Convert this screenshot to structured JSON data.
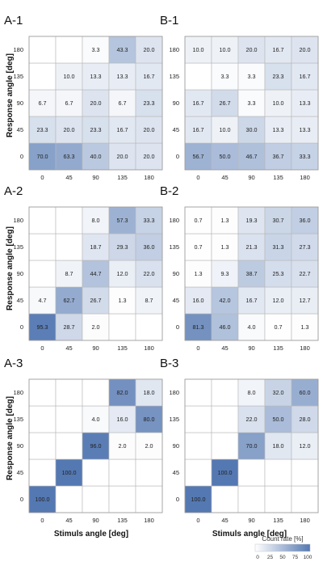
{
  "chart_data": [
    {
      "type": "heatmap",
      "title": "A-1",
      "x": [
        0,
        45,
        90,
        135,
        180
      ],
      "y": [
        0,
        45,
        90,
        135,
        180
      ],
      "xticks": [
        "0",
        "45",
        "90",
        "135",
        "180"
      ],
      "yticks": [
        "0",
        "45",
        "90",
        "135",
        "180"
      ],
      "values": [
        [
          70.0,
          63.3,
          40.0,
          20.0,
          20.0
        ],
        [
          23.3,
          20.0,
          23.3,
          16.7,
          20.0
        ],
        [
          6.7,
          6.7,
          20.0,
          6.7,
          23.3
        ],
        [
          null,
          10.0,
          13.3,
          13.3,
          16.7
        ],
        [
          null,
          null,
          3.3,
          43.3,
          20.0
        ]
      ]
    },
    {
      "type": "heatmap",
      "title": "B-1",
      "x": [
        0,
        45,
        90,
        135,
        180
      ],
      "y": [
        0,
        45,
        90,
        135,
        180
      ],
      "xticks": [
        "0",
        "45",
        "90",
        "135",
        "180"
      ],
      "yticks": [
        "0",
        "45",
        "90",
        "135",
        "180"
      ],
      "values": [
        [
          56.7,
          50.0,
          46.7,
          36.7,
          33.3
        ],
        [
          16.7,
          10.0,
          30.0,
          13.3,
          13.3
        ],
        [
          16.7,
          26.7,
          3.3,
          10.0,
          13.3
        ],
        [
          null,
          3.3,
          3.3,
          23.3,
          16.7
        ],
        [
          10.0,
          10.0,
          20.0,
          16.7,
          20.0
        ]
      ]
    },
    {
      "type": "heatmap",
      "title": "A-2",
      "x": [
        0,
        45,
        90,
        135,
        180
      ],
      "y": [
        0,
        45,
        90,
        135,
        180
      ],
      "xticks": [
        "0",
        "45",
        "90",
        "135",
        "180"
      ],
      "yticks": [
        "0",
        "45",
        "90",
        "135",
        "180"
      ],
      "values": [
        [
          95.3,
          28.7,
          2.0,
          null,
          null
        ],
        [
          4.7,
          62.7,
          26.7,
          1.3,
          8.7
        ],
        [
          null,
          8.7,
          44.7,
          12.0,
          22.0
        ],
        [
          null,
          null,
          18.7,
          29.3,
          36.0
        ],
        [
          null,
          null,
          8.0,
          57.3,
          33.3
        ]
      ]
    },
    {
      "type": "heatmap",
      "title": "B-2",
      "x": [
        0,
        45,
        90,
        135,
        180
      ],
      "y": [
        0,
        45,
        90,
        135,
        180
      ],
      "xticks": [
        "0",
        "45",
        "90",
        "135",
        "180"
      ],
      "yticks": [
        "0",
        "45",
        "90",
        "135",
        "180"
      ],
      "values": [
        [
          81.3,
          46.0,
          4.0,
          0.7,
          1.3
        ],
        [
          16.0,
          42.0,
          16.7,
          12.0,
          12.7
        ],
        [
          1.3,
          9.3,
          38.7,
          25.3,
          22.7
        ],
        [
          0.7,
          1.3,
          21.3,
          31.3,
          27.3
        ],
        [
          0.7,
          1.3,
          19.3,
          30.7,
          36.0
        ]
      ]
    },
    {
      "type": "heatmap",
      "title": "A-3",
      "x": [
        0,
        45,
        90,
        135,
        180
      ],
      "y": [
        0,
        45,
        90,
        135,
        180
      ],
      "xticks": [
        "0",
        "45",
        "90",
        "135",
        "180"
      ],
      "yticks": [
        "0",
        "45",
        "90",
        "135",
        "180"
      ],
      "values": [
        [
          100.0,
          null,
          null,
          null,
          null
        ],
        [
          null,
          100.0,
          null,
          null,
          null
        ],
        [
          null,
          null,
          96.0,
          2.0,
          2.0
        ],
        [
          null,
          null,
          4.0,
          16.0,
          80.0
        ],
        [
          null,
          null,
          null,
          82.0,
          18.0
        ]
      ]
    },
    {
      "type": "heatmap",
      "title": "B-3",
      "x": [
        0,
        45,
        90,
        135,
        180
      ],
      "y": [
        0,
        45,
        90,
        135,
        180
      ],
      "xticks": [
        "0",
        "45",
        "90",
        "135",
        "180"
      ],
      "yticks": [
        "0",
        "45",
        "90",
        "135",
        "180"
      ],
      "values": [
        [
          100.0,
          null,
          null,
          null,
          null
        ],
        [
          null,
          100.0,
          null,
          null,
          null
        ],
        [
          null,
          null,
          70.0,
          18.0,
          12.0
        ],
        [
          null,
          null,
          22.0,
          50.0,
          28.0
        ],
        [
          null,
          null,
          8.0,
          32.0,
          60.0
        ]
      ]
    }
  ],
  "ylabel": "Response angle [deg]",
  "xlabel": "Stimuls angle [deg]",
  "colorbar": {
    "title": "Count rate [%]",
    "ticks": [
      "0",
      "25",
      "50",
      "75",
      "100"
    ],
    "range": [
      0,
      100
    ],
    "color_low": "#ffffff",
    "color_high": "#5478b2"
  },
  "colors": {
    "grid_line": "#b8b8b8",
    "border": "#999999"
  }
}
